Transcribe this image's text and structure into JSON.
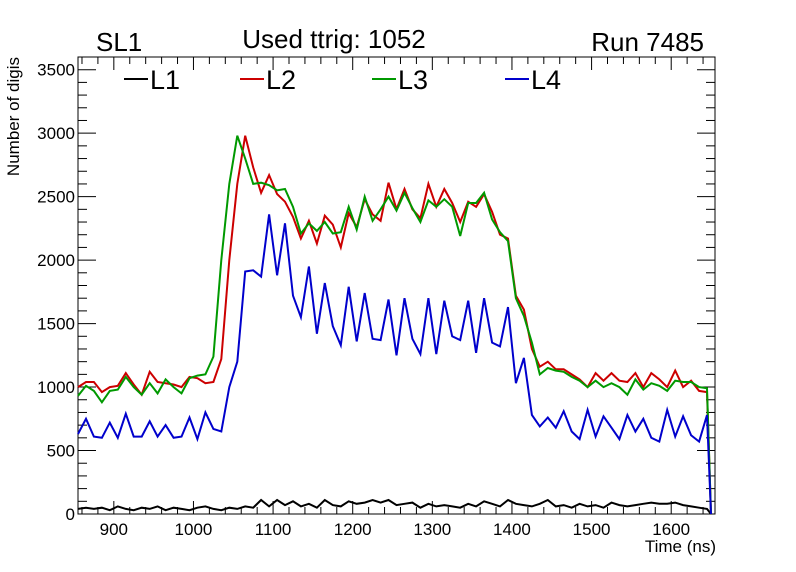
{
  "chart_data": {
    "type": "line",
    "title": "Used ttrig: 1052",
    "left_label": "SL1",
    "right_label": "Run 7485",
    "xlabel": "Time (ns)",
    "ylabel": "Number of digis",
    "xlim": [
      855,
      1655
    ],
    "ylim": [
      0,
      3600
    ],
    "x_ticks": [
      900,
      1000,
      1100,
      1200,
      1300,
      1400,
      1500,
      1600
    ],
    "y_ticks": [
      0,
      500,
      1000,
      1500,
      2000,
      2500,
      3000,
      3500
    ],
    "grid": false,
    "legend_position": "top",
    "x": [
      855,
      865,
      875,
      885,
      895,
      905,
      915,
      925,
      935,
      945,
      955,
      965,
      975,
      985,
      995,
      1005,
      1015,
      1025,
      1035,
      1045,
      1055,
      1065,
      1075,
      1085,
      1095,
      1105,
      1115,
      1125,
      1135,
      1145,
      1155,
      1165,
      1175,
      1185,
      1195,
      1205,
      1215,
      1225,
      1235,
      1245,
      1255,
      1265,
      1275,
      1285,
      1295,
      1305,
      1315,
      1325,
      1335,
      1345,
      1355,
      1365,
      1375,
      1385,
      1395,
      1405,
      1415,
      1425,
      1435,
      1445,
      1455,
      1465,
      1475,
      1485,
      1495,
      1505,
      1515,
      1525,
      1535,
      1545,
      1555,
      1565,
      1575,
      1585,
      1595,
      1605,
      1615,
      1625,
      1635,
      1645,
      1650
    ],
    "series": [
      {
        "name": "L1",
        "color": "#000000",
        "values": [
          40,
          50,
          40,
          50,
          30,
          60,
          40,
          30,
          50,
          40,
          60,
          30,
          50,
          40,
          30,
          50,
          60,
          40,
          30,
          50,
          40,
          60,
          50,
          110,
          60,
          110,
          70,
          100,
          60,
          80,
          50,
          110,
          70,
          60,
          100,
          80,
          90,
          110,
          90,
          110,
          70,
          80,
          90,
          50,
          80,
          60,
          70,
          60,
          50,
          80,
          60,
          100,
          80,
          60,
          110,
          80,
          70,
          60,
          80,
          110,
          60,
          70,
          50,
          80,
          60,
          70,
          50,
          90,
          70,
          60,
          70,
          80,
          90,
          80,
          80,
          90,
          70,
          60,
          50,
          40,
          0
        ]
      },
      {
        "name": "L2",
        "color": "#cc0000",
        "values": [
          1000,
          1040,
          1040,
          960,
          1000,
          1010,
          1110,
          1020,
          940,
          1120,
          1040,
          1030,
          1020,
          1000,
          1080,
          1070,
          1030,
          1040,
          1220,
          2000,
          2600,
          2980,
          2730,
          2530,
          2670,
          2520,
          2460,
          2340,
          2170,
          2310,
          2130,
          2350,
          2280,
          2100,
          2370,
          2260,
          2480,
          2360,
          2310,
          2610,
          2400,
          2560,
          2400,
          2330,
          2600,
          2420,
          2560,
          2450,
          2300,
          2460,
          2420,
          2520,
          2380,
          2200,
          2170,
          1720,
          1610,
          1300,
          1160,
          1200,
          1140,
          1140,
          1100,
          1060,
          1000,
          1110,
          1050,
          1110,
          1050,
          1040,
          1110,
          1000,
          1110,
          1060,
          1000,
          1130,
          1000,
          1050,
          970,
          960,
          0
        ]
      },
      {
        "name": "L3",
        "color": "#009900",
        "values": [
          930,
          1010,
          970,
          880,
          970,
          980,
          1080,
          1000,
          940,
          1030,
          950,
          1060,
          1000,
          950,
          1070,
          1090,
          1100,
          1240,
          2000,
          2600,
          2980,
          2800,
          2600,
          2610,
          2590,
          2550,
          2560,
          2420,
          2210,
          2290,
          2230,
          2300,
          2210,
          2220,
          2420,
          2240,
          2500,
          2310,
          2400,
          2500,
          2390,
          2530,
          2410,
          2300,
          2470,
          2420,
          2480,
          2420,
          2190,
          2450,
          2450,
          2530,
          2320,
          2220,
          2150,
          1700,
          1560,
          1350,
          1100,
          1150,
          1130,
          1120,
          1080,
          1050,
          1000,
          1050,
          1000,
          1030,
          1000,
          940,
          1060,
          980,
          1030,
          1010,
          970,
          1050,
          1040,
          1040,
          1000,
          990,
          0
        ]
      },
      {
        "name": "L4",
        "color": "#0000cc",
        "values": [
          630,
          750,
          610,
          600,
          720,
          600,
          790,
          610,
          610,
          730,
          610,
          700,
          600,
          610,
          760,
          590,
          800,
          670,
          650,
          1000,
          1200,
          1910,
          1920,
          1870,
          2360,
          1880,
          2290,
          1720,
          1550,
          1950,
          1420,
          1820,
          1480,
          1330,
          1790,
          1360,
          1740,
          1380,
          1370,
          1690,
          1250,
          1700,
          1380,
          1260,
          1700,
          1260,
          1680,
          1400,
          1370,
          1680,
          1270,
          1700,
          1350,
          1320,
          1630,
          1030,
          1230,
          780,
          690,
          760,
          680,
          810,
          650,
          590,
          820,
          610,
          770,
          680,
          590,
          780,
          650,
          750,
          600,
          570,
          820,
          610,
          770,
          620,
          570,
          780,
          0
        ]
      }
    ]
  }
}
